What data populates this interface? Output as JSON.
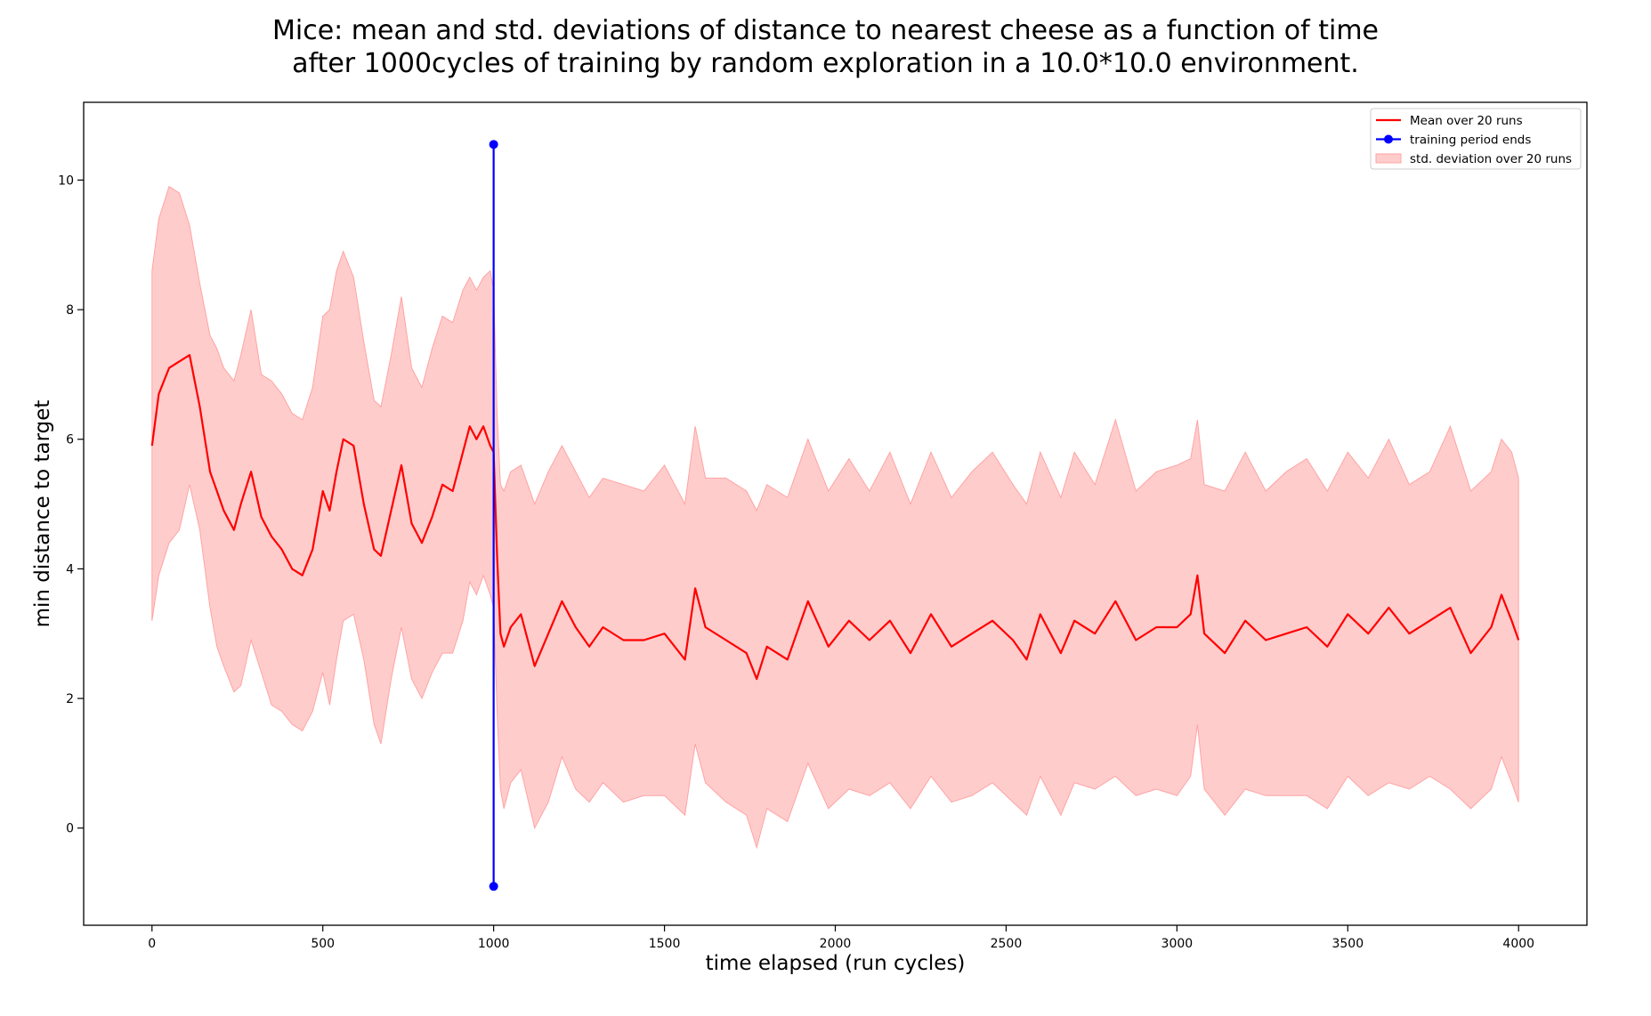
{
  "chart_data": {
    "type": "line",
    "title_line1": "Mice: mean and std. deviations of distance to nearest cheese as a function of time",
    "title_line2": "after 1000cycles of training by random exploration in a 10.0*10.0 environment.",
    "xlabel": "time elapsed (run cycles)",
    "ylabel": "min distance to target",
    "xlim": [
      -200,
      4200
    ],
    "ylim": [
      -1.5,
      11.2
    ],
    "xticks": [
      0,
      500,
      1000,
      1500,
      2000,
      2500,
      3000,
      3500,
      4000
    ],
    "yticks": [
      0,
      2,
      4,
      6,
      8,
      10
    ],
    "grid": false,
    "legend_position": "top-right",
    "colors": {
      "mean": "#ff0000",
      "band": "#ffcccc",
      "band_edge": "#ffa3a3",
      "marker": "#0000ff",
      "axes": "#000000"
    },
    "legend": [
      {
        "label": "Mean over 20 runs",
        "kind": "line"
      },
      {
        "label": "training period ends",
        "kind": "marker-line"
      },
      {
        "label": "std. deviation over 20 runs",
        "kind": "patch"
      }
    ],
    "series": [
      {
        "name": "Mean over 20 runs",
        "x": [
          0,
          20,
          50,
          80,
          110,
          140,
          170,
          190,
          210,
          240,
          260,
          290,
          320,
          350,
          380,
          410,
          440,
          470,
          500,
          520,
          540,
          560,
          590,
          620,
          650,
          670,
          700,
          730,
          760,
          790,
          820,
          850,
          880,
          910,
          930,
          950,
          970,
          990,
          1000,
          1010,
          1020,
          1030,
          1050,
          1080,
          1120,
          1160,
          1200,
          1240,
          1280,
          1320,
          1380,
          1440,
          1500,
          1560,
          1590,
          1620,
          1680,
          1740,
          1770,
          1800,
          1860,
          1920,
          1980,
          2040,
          2100,
          2160,
          2220,
          2280,
          2340,
          2400,
          2460,
          2520,
          2560,
          2600,
          2660,
          2700,
          2760,
          2820,
          2880,
          2940,
          3000,
          3040,
          3060,
          3080,
          3140,
          3200,
          3260,
          3320,
          3380,
          3440,
          3500,
          3560,
          3620,
          3680,
          3740,
          3800,
          3860,
          3920,
          3950,
          3980,
          4000
        ],
        "y": [
          5.9,
          6.7,
          7.1,
          7.2,
          7.3,
          6.5,
          5.5,
          5.2,
          4.9,
          4.6,
          5.0,
          5.5,
          4.8,
          4.5,
          4.3,
          4.0,
          3.9,
          4.3,
          5.2,
          4.9,
          5.5,
          6.0,
          5.9,
          5.0,
          4.3,
          4.2,
          4.9,
          5.6,
          4.7,
          4.4,
          4.8,
          5.3,
          5.2,
          5.8,
          6.2,
          6.0,
          6.2,
          5.9,
          5.8,
          4.2,
          3.0,
          2.8,
          3.1,
          3.3,
          2.5,
          3.0,
          3.5,
          3.1,
          2.8,
          3.1,
          2.9,
          2.9,
          3.0,
          2.6,
          3.7,
          3.1,
          2.9,
          2.7,
          2.3,
          2.8,
          2.6,
          3.5,
          2.8,
          3.2,
          2.9,
          3.2,
          2.7,
          3.3,
          2.8,
          3.0,
          3.2,
          2.9,
          2.6,
          3.3,
          2.7,
          3.2,
          3.0,
          3.5,
          2.9,
          3.1,
          3.1,
          3.3,
          3.9,
          3.0,
          2.7,
          3.2,
          2.9,
          3.0,
          3.1,
          2.8,
          3.3,
          3.0,
          3.4,
          3.0,
          3.2,
          3.4,
          2.7,
          3.1,
          3.6,
          3.2,
          2.9
        ]
      },
      {
        "name": "std. deviation over 20 runs",
        "x": [
          0,
          20,
          50,
          80,
          110,
          140,
          170,
          190,
          210,
          240,
          260,
          290,
          320,
          350,
          380,
          410,
          440,
          470,
          500,
          520,
          540,
          560,
          590,
          620,
          650,
          670,
          700,
          730,
          760,
          790,
          820,
          850,
          880,
          910,
          930,
          950,
          970,
          990,
          1000,
          1010,
          1020,
          1030,
          1050,
          1080,
          1120,
          1160,
          1200,
          1240,
          1280,
          1320,
          1380,
          1440,
          1500,
          1560,
          1590,
          1620,
          1680,
          1740,
          1770,
          1800,
          1860,
          1920,
          1980,
          2040,
          2100,
          2160,
          2220,
          2280,
          2340,
          2400,
          2460,
          2520,
          2560,
          2600,
          2660,
          2700,
          2760,
          2820,
          2880,
          2940,
          3000,
          3040,
          3060,
          3080,
          3140,
          3200,
          3260,
          3320,
          3380,
          3440,
          3500,
          3560,
          3620,
          3680,
          3740,
          3800,
          3860,
          3920,
          3950,
          3980,
          4000
        ],
        "upper": [
          8.6,
          9.4,
          9.9,
          9.8,
          9.3,
          8.4,
          7.6,
          7.4,
          7.1,
          6.9,
          7.3,
          8.0,
          7.0,
          6.9,
          6.7,
          6.4,
          6.3,
          6.8,
          7.9,
          8.0,
          8.6,
          8.9,
          8.5,
          7.5,
          6.6,
          6.5,
          7.3,
          8.2,
          7.1,
          6.8,
          7.4,
          7.9,
          7.8,
          8.3,
          8.5,
          8.3,
          8.5,
          8.6,
          8.3,
          6.4,
          5.3,
          5.2,
          5.5,
          5.6,
          5.0,
          5.5,
          5.9,
          5.5,
          5.1,
          5.4,
          5.3,
          5.2,
          5.6,
          5.0,
          6.2,
          5.4,
          5.4,
          5.2,
          4.9,
          5.3,
          5.1,
          6.0,
          5.2,
          5.7,
          5.2,
          5.8,
          5.0,
          5.8,
          5.1,
          5.5,
          5.8,
          5.3,
          5.0,
          5.8,
          5.1,
          5.8,
          5.3,
          6.3,
          5.2,
          5.5,
          5.6,
          5.7,
          6.3,
          5.3,
          5.2,
          5.8,
          5.2,
          5.5,
          5.7,
          5.2,
          5.8,
          5.4,
          6.0,
          5.3,
          5.5,
          6.2,
          5.2,
          5.5,
          6.0,
          5.8,
          5.4
        ],
        "lower": [
          3.2,
          3.9,
          4.4,
          4.6,
          5.3,
          4.6,
          3.4,
          2.8,
          2.5,
          2.1,
          2.2,
          2.9,
          2.4,
          1.9,
          1.8,
          1.6,
          1.5,
          1.8,
          2.4,
          1.9,
          2.6,
          3.2,
          3.3,
          2.6,
          1.6,
          1.3,
          2.3,
          3.1,
          2.3,
          2.0,
          2.4,
          2.7,
          2.7,
          3.2,
          3.8,
          3.6,
          3.9,
          3.6,
          3.4,
          1.8,
          0.6,
          0.3,
          0.7,
          0.9,
          0.0,
          0.4,
          1.1,
          0.6,
          0.4,
          0.7,
          0.4,
          0.5,
          0.5,
          0.2,
          1.3,
          0.7,
          0.4,
          0.2,
          -0.3,
          0.3,
          0.1,
          1.0,
          0.3,
          0.6,
          0.5,
          0.7,
          0.3,
          0.8,
          0.4,
          0.5,
          0.7,
          0.4,
          0.2,
          0.8,
          0.2,
          0.7,
          0.6,
          0.8,
          0.5,
          0.6,
          0.5,
          0.8,
          1.6,
          0.6,
          0.2,
          0.6,
          0.5,
          0.5,
          0.5,
          0.3,
          0.8,
          0.5,
          0.7,
          0.6,
          0.8,
          0.6,
          0.3,
          0.6,
          1.1,
          0.7,
          0.4
        ]
      },
      {
        "name": "training period ends",
        "x": [
          1000,
          1000
        ],
        "y": [
          10.55,
          -0.9
        ]
      }
    ]
  }
}
